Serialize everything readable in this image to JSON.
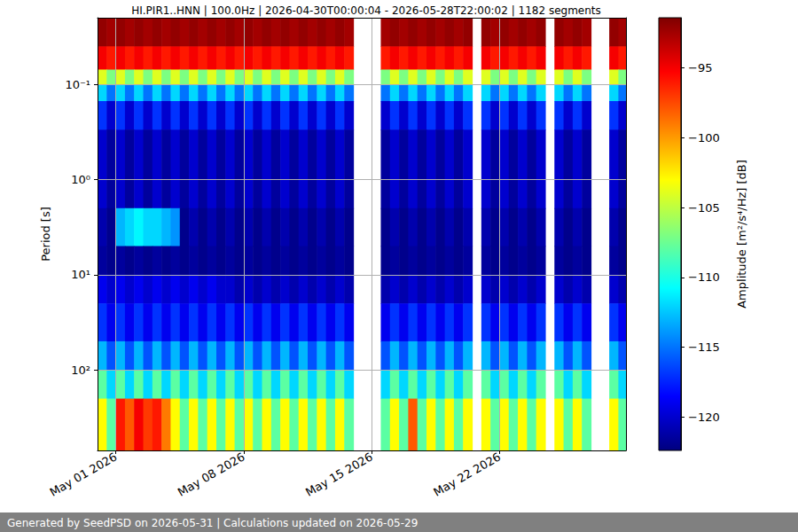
{
  "chart_data": {
    "type": "heatmap",
    "title": "HI.PIR1..HNN | 100.0Hz | 2026-04-30T00:00:04 - 2026-05-28T22:00:02 | 1182 segments",
    "footer": "Generated by SeedPSD on 2026-05-31 | Calculations updated on 2026-05-29",
    "y_label": "Period [s]",
    "colorbar_label": "Amplitude [m²/s⁴/Hz] [dB]",
    "log": "y",
    "grid": true,
    "xlim": [
      "2026-04-30T00:00:04",
      "2026-05-28T22:00:02"
    ],
    "xticks": [
      {
        "value": "2026-05-01",
        "label": "May 01 2026"
      },
      {
        "value": "2026-05-08",
        "label": "May 08 2026"
      },
      {
        "value": "2026-05-15",
        "label": "May 15 2026"
      },
      {
        "value": "2026-05-22",
        "label": "May 22 2026"
      }
    ],
    "ylim": [
      0.02,
      700
    ],
    "yticks": [
      {
        "value": 0.1,
        "label": "10⁻¹"
      },
      {
        "value": 1,
        "label": "10⁰"
      },
      {
        "value": 10,
        "label": "10¹"
      },
      {
        "value": 100,
        "label": "10²"
      }
    ],
    "x_bins": [
      "2026-04-30T00:00",
      "2026-04-30T12:00",
      "2026-05-01T00:00",
      "2026-05-01T12:00",
      "2026-05-02T00:00",
      "2026-05-02T12:00",
      "2026-05-03T00:00",
      "2026-05-03T12:00",
      "2026-05-04T00:00",
      "2026-05-04T12:00",
      "2026-05-05T00:00",
      "2026-05-05T12:00",
      "2026-05-06T00:00",
      "2026-05-06T12:00",
      "2026-05-07T00:00",
      "2026-05-07T12:00",
      "2026-05-08T00:00",
      "2026-05-08T12:00",
      "2026-05-09T00:00",
      "2026-05-09T12:00",
      "2026-05-10T00:00",
      "2026-05-10T12:00",
      "2026-05-11T00:00",
      "2026-05-11T12:00",
      "2026-05-12T00:00",
      "2026-05-12T12:00",
      "2026-05-13T00:00",
      "2026-05-13T12:00",
      "2026-05-14T00:00",
      "2026-05-14T12:00",
      "2026-05-15T00:00",
      "2026-05-15T12:00",
      "2026-05-16T00:00",
      "2026-05-16T12:00",
      "2026-05-17T00:00",
      "2026-05-17T12:00",
      "2026-05-18T00:00",
      "2026-05-18T12:00",
      "2026-05-19T00:00",
      "2026-05-19T12:00",
      "2026-05-20T00:00",
      "2026-05-20T12:00",
      "2026-05-21T00:00",
      "2026-05-21T12:00",
      "2026-05-22T00:00",
      "2026-05-22T12:00",
      "2026-05-23T00:00",
      "2026-05-23T12:00",
      "2026-05-24T00:00",
      "2026-05-24T12:00",
      "2026-05-25T00:00",
      "2026-05-25T12:00",
      "2026-05-26T00:00",
      "2026-05-26T12:00",
      "2026-05-27T00:00",
      "2026-05-27T12:00",
      "2026-05-28T00:00",
      "2026-05-28T12:00",
      "2026-05-29T00:00"
    ],
    "y_bins": [
      0.02,
      0.04,
      0.07,
      0.1,
      0.15,
      0.3,
      2,
      5,
      10,
      20,
      50,
      100,
      200,
      700
    ],
    "values": [
      [
        -92,
        -92.5,
        -92,
        -92.5,
        -92,
        -92.5,
        -92,
        -92.5,
        -92,
        -92.5,
        -92,
        -92.5,
        -92,
        -92.5,
        -92,
        -92.5,
        -92,
        -92.5,
        -92,
        -92.5,
        -92,
        -92.5,
        -92,
        -92.5,
        -92,
        -92.5,
        -92,
        -92.5,
        null,
        null,
        null,
        -92.5,
        -92,
        -92.5,
        -92,
        -92.5,
        -92,
        -92.5,
        -92,
        -92.5,
        -92,
        null,
        -92,
        -92.5,
        -92,
        -92.5,
        -92,
        -92.5,
        -92,
        null,
        -92,
        -92.5,
        -92,
        -92.5,
        null,
        null,
        -92,
        -92.5
      ],
      [
        -95,
        -96,
        -95,
        -96,
        -95,
        -96,
        -95,
        -96,
        -95,
        -96,
        -95,
        -96,
        -95,
        -96,
        -95,
        -96,
        -95,
        -96,
        -95,
        -96,
        -95,
        -96,
        -95,
        -96,
        -95,
        -96,
        -95,
        -96,
        null,
        null,
        null,
        -96,
        -95,
        -96,
        -95,
        -96,
        -95,
        -96,
        -95,
        -96,
        -95,
        null,
        -95,
        -96,
        -95,
        -96,
        -95,
        -96,
        -95,
        null,
        -95,
        -96,
        -95,
        -96,
        null,
        null,
        -95,
        -96
      ],
      [
        -104,
        -107,
        -104,
        -107,
        -104,
        -107,
        -104,
        -107,
        -104,
        -107,
        -104,
        -107,
        -104,
        -107,
        -104,
        -107,
        -104,
        -107,
        -104,
        -107,
        -104,
        -107,
        -104,
        -107,
        -104,
        -107,
        -104,
        -107,
        null,
        null,
        null,
        -107,
        -104,
        -107,
        -104,
        -107,
        -104,
        -107,
        -104,
        -107,
        -104,
        null,
        -104,
        -107,
        -104,
        -107,
        -104,
        -107,
        -104,
        null,
        -104,
        -107,
        -104,
        -107,
        null,
        null,
        -104,
        -107
      ],
      [
        -112,
        -115,
        -112,
        -115,
        -112,
        -115,
        -112,
        -115,
        -112,
        -115,
        -112,
        -115,
        -112,
        -115,
        -112,
        -115,
        -112,
        -115,
        -112,
        -115,
        -112,
        -115,
        -112,
        -115,
        -112,
        -115,
        -112,
        -115,
        null,
        null,
        null,
        -115,
        -112,
        -115,
        -112,
        -115,
        -112,
        -115,
        -112,
        -115,
        -112,
        null,
        -112,
        -115,
        -112,
        -115,
        -112,
        -115,
        -112,
        null,
        -112,
        -115,
        -112,
        -115,
        null,
        null,
        -112,
        -115
      ],
      [
        -117,
        -120,
        -117,
        -120,
        -117,
        -120,
        -117,
        -120,
        -117,
        -120,
        -117,
        -120,
        -117,
        -120,
        -117,
        -120,
        -117,
        -120,
        -117,
        -120,
        -117,
        -120,
        -117,
        -120,
        -117,
        -120,
        -117,
        -120,
        null,
        null,
        null,
        -120,
        -117,
        -120,
        -117,
        -120,
        -117,
        -120,
        -117,
        -120,
        -117,
        null,
        -117,
        -120,
        -117,
        -120,
        -117,
        -120,
        -117,
        null,
        -117,
        -120,
        -117,
        -120,
        null,
        null,
        -117,
        -120
      ],
      [
        -120,
        -121.5,
        -120,
        -121.5,
        -120,
        -121.5,
        -120,
        -121.5,
        -120,
        -121.5,
        -120,
        -121.5,
        -120,
        -121.5,
        -120,
        -121.5,
        -120,
        -121.5,
        -120,
        -121.5,
        -120,
        -121.5,
        -120,
        -121.5,
        -120,
        -121.5,
        -120,
        -121.5,
        null,
        null,
        null,
        -121.5,
        -120,
        -121.5,
        -120,
        -121.5,
        -120,
        -121.5,
        -120,
        -121.5,
        -120,
        null,
        -120,
        -121.5,
        -120,
        -121.5,
        -120,
        -121.5,
        -120,
        null,
        -120,
        -121.5,
        -120,
        -121.5,
        null,
        null,
        -120,
        -121.5
      ],
      [
        -121,
        -122,
        -113,
        -112,
        -111,
        -112,
        -112,
        -113,
        -114,
        -122,
        -121,
        -122,
        -121,
        -122,
        -121,
        -122,
        -121,
        -122,
        -121,
        -122,
        -121,
        -122,
        -121,
        -122,
        -121,
        -122,
        -121,
        -122,
        null,
        null,
        null,
        -122,
        -121,
        -122,
        -121,
        -122,
        -121,
        -122,
        -121,
        -122,
        -121,
        null,
        -121,
        -122,
        -121,
        -122,
        -121,
        -122,
        -121,
        null,
        -121,
        -122,
        -121,
        -122,
        null,
        null,
        -121,
        -122
      ],
      [
        -121.5,
        -122,
        -121.5,
        -122,
        -121.5,
        -122,
        -121.5,
        -122,
        -121.5,
        -122,
        -121.5,
        -122,
        -121.5,
        -122,
        -121.5,
        -122,
        -121.5,
        -122,
        -121.5,
        -122,
        -121.5,
        -122,
        -121.5,
        -122,
        -121.5,
        -122,
        -121.5,
        -122,
        null,
        null,
        null,
        -122,
        -121.5,
        -122,
        -121.5,
        -122,
        -121.5,
        -122,
        -121.5,
        -122,
        -121.5,
        null,
        -121.5,
        -122,
        -121.5,
        -122,
        -121.5,
        -122,
        -121.5,
        null,
        -121.5,
        -122,
        -121.5,
        -122,
        null,
        null,
        -121.5,
        -122
      ],
      [
        -119,
        -120,
        -119,
        -120,
        -119,
        -120,
        -119,
        -120,
        -119,
        -120,
        -119,
        -120,
        -119,
        -120,
        -120,
        -121,
        -120,
        -121,
        -120,
        -121,
        -120,
        -121,
        -120,
        -121,
        -120,
        -121,
        -120,
        -121,
        null,
        null,
        null,
        -121,
        -120,
        -121,
        -120,
        -121,
        -120,
        -121,
        -120,
        -121,
        -120,
        null,
        -120,
        -121,
        -120,
        -121,
        -120,
        -121,
        -120,
        null,
        -120,
        -121,
        -120,
        -121,
        null,
        null,
        -120,
        -121
      ],
      [
        -117,
        -119,
        -117,
        -119,
        -117,
        -119,
        -117,
        -119,
        -117,
        -119,
        -117,
        -119,
        -117,
        -119,
        -117,
        -119,
        -117,
        -119,
        -117,
        -119,
        -117,
        -119,
        -117,
        -119,
        -117,
        -119,
        -117,
        -119,
        null,
        null,
        null,
        -119,
        -117,
        -119,
        -117,
        -119,
        -117,
        -119,
        -117,
        -119,
        -117,
        null,
        -117,
        -119,
        -117,
        -119,
        -117,
        -119,
        -117,
        null,
        -117,
        -119,
        -117,
        -119,
        null,
        null,
        -117,
        -119
      ],
      [
        -113,
        -116,
        -113,
        -116,
        -113,
        -116,
        -113,
        -116,
        -113,
        -116,
        -113,
        -116,
        -113,
        -116,
        -113,
        -116,
        -113,
        -116,
        -113,
        -116,
        -113,
        -116,
        -113,
        -116,
        -113,
        -116,
        -113,
        -116,
        null,
        null,
        null,
        -116,
        -113,
        -116,
        -113,
        -116,
        -113,
        -116,
        -113,
        -116,
        -113,
        null,
        -113,
        -116,
        -113,
        -116,
        -113,
        -116,
        -113,
        null,
        -113,
        -116,
        -113,
        -116,
        null,
        null,
        -113,
        -116
      ],
      [
        -108,
        -112,
        -108,
        -112,
        -108,
        -112,
        -108,
        -112,
        -108,
        -112,
        -108,
        -112,
        -108,
        -112,
        -108,
        -112,
        -108,
        -112,
        -108,
        -112,
        -108,
        -112,
        -108,
        -112,
        -108,
        -112,
        -108,
        -112,
        null,
        null,
        null,
        -112,
        -108,
        -112,
        -108,
        -112,
        -108,
        -112,
        -108,
        -112,
        -108,
        null,
        -108,
        -112,
        -108,
        -112,
        -108,
        -112,
        -108,
        null,
        -108,
        -112,
        -108,
        -112,
        null,
        null,
        -108,
        -112
      ],
      [
        -103,
        -108,
        -96,
        -98,
        -95,
        -97,
        -96,
        -99,
        -103,
        -108,
        -103,
        -108,
        -103,
        -108,
        -103,
        -108,
        -103,
        -108,
        -103,
        -108,
        -103,
        -108,
        -103,
        -108,
        -103,
        -108,
        -103,
        -108,
        null,
        null,
        null,
        -108,
        -103,
        -108,
        -98,
        -108,
        -103,
        -108,
        -103,
        -108,
        -103,
        null,
        -103,
        -108,
        -103,
        -108,
        -103,
        -108,
        -103,
        null,
        -103,
        -108,
        -103,
        -108,
        null,
        null,
        -103,
        -108
      ]
    ],
    "clim": [
      -122.4,
      -91.4
    ],
    "cticks": [
      {
        "value": -120,
        "label": "−120"
      },
      {
        "value": -115,
        "label": "−115"
      },
      {
        "value": -110,
        "label": "−110"
      },
      {
        "value": -105,
        "label": "−105"
      },
      {
        "value": -100,
        "label": "−100"
      },
      {
        "value": -95,
        "label": "−95"
      }
    ]
  }
}
